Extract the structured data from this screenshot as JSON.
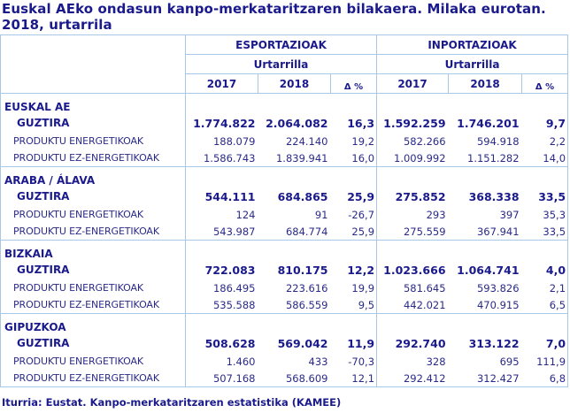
{
  "title": "Euskal AEko ondasun kanpo-merkataritzaren  bilakaera. Milaka eurotan. 2018, urtarrila",
  "header": {
    "exports_label": "ESPORTAZIOAK",
    "imports_label": "INPORTAZIOAK",
    "period_exports": "Urtarrilla",
    "period_imports": "Urtarrilla",
    "years": [
      "2017",
      "2018"
    ],
    "delta_label": "Δ %"
  },
  "colors": {
    "text": "#1a1a8c",
    "border": "#a9c7e6",
    "background": "#ffffff"
  },
  "regions": [
    {
      "name": "EUSKAL AE",
      "rows": [
        {
          "label": "GUZTIRA",
          "exp2017": "1.774.822",
          "exp2018": "2.064.082",
          "expDelta": "16,3",
          "imp2017": "1.592.259",
          "imp2018": "1.746.201",
          "impDelta": "9,7"
        },
        {
          "label": "PRODUKTU ENERGETIKOAK",
          "exp2017": "188.079",
          "exp2018": "224.140",
          "expDelta": "19,2",
          "imp2017": "582.266",
          "imp2018": "594.918",
          "impDelta": "2,2"
        },
        {
          "label": "PRODUKTU EZ-ENERGETIKOAK",
          "exp2017": "1.586.743",
          "exp2018": "1.839.941",
          "expDelta": "16,0",
          "imp2017": "1.009.992",
          "imp2018": "1.151.282",
          "impDelta": "14,0"
        }
      ]
    },
    {
      "name": "ARABA / ÁLAVA",
      "rows": [
        {
          "label": "GUZTIRA",
          "exp2017": "544.111",
          "exp2018": "684.865",
          "expDelta": "25,9",
          "imp2017": "275.852",
          "imp2018": "368.338",
          "impDelta": "33,5"
        },
        {
          "label": "PRODUKTU ENERGETIKOAK",
          "exp2017": "124",
          "exp2018": "91",
          "expDelta": "-26,7",
          "imp2017": "293",
          "imp2018": "397",
          "impDelta": "35,3"
        },
        {
          "label": "PRODUKTU EZ-ENERGETIKOAK",
          "exp2017": "543.987",
          "exp2018": "684.774",
          "expDelta": "25,9",
          "imp2017": "275.559",
          "imp2018": "367.941",
          "impDelta": "33,5"
        }
      ]
    },
    {
      "name": "BIZKAIA",
      "rows": [
        {
          "label": "GUZTIRA",
          "exp2017": "722.083",
          "exp2018": "810.175",
          "expDelta": "12,2",
          "imp2017": "1.023.666",
          "imp2018": "1.064.741",
          "impDelta": "4,0"
        },
        {
          "label": "PRODUKTU ENERGETIKOAK",
          "exp2017": "186.495",
          "exp2018": "223.616",
          "expDelta": "19,9",
          "imp2017": "581.645",
          "imp2018": "593.826",
          "impDelta": "2,1"
        },
        {
          "label": "PRODUKTU EZ-ENERGETIKOAK",
          "exp2017": "535.588",
          "exp2018": "586.559",
          "expDelta": "9,5",
          "imp2017": "442.021",
          "imp2018": "470.915",
          "impDelta": "6,5"
        }
      ]
    },
    {
      "name": "GIPUZKOA",
      "rows": [
        {
          "label": "GUZTIRA",
          "exp2017": "508.628",
          "exp2018": "569.042",
          "expDelta": "11,9",
          "imp2017": "292.740",
          "imp2018": "313.122",
          "impDelta": "7,0"
        },
        {
          "label": "PRODUKTU ENERGETIKOAK",
          "exp2017": "1.460",
          "exp2018": "433",
          "expDelta": "-70,3",
          "imp2017": "328",
          "imp2018": "695",
          "impDelta": "111,9"
        },
        {
          "label": "PRODUKTU EZ-ENERGETIKOAK",
          "exp2017": "507.168",
          "exp2018": "568.609",
          "expDelta": "12,1",
          "imp2017": "292.412",
          "imp2018": "312.427",
          "impDelta": "6,8"
        }
      ]
    }
  ],
  "source": "Iturria: Eustat. Kanpo-merkataritzaren estatistika (KAMEE)"
}
